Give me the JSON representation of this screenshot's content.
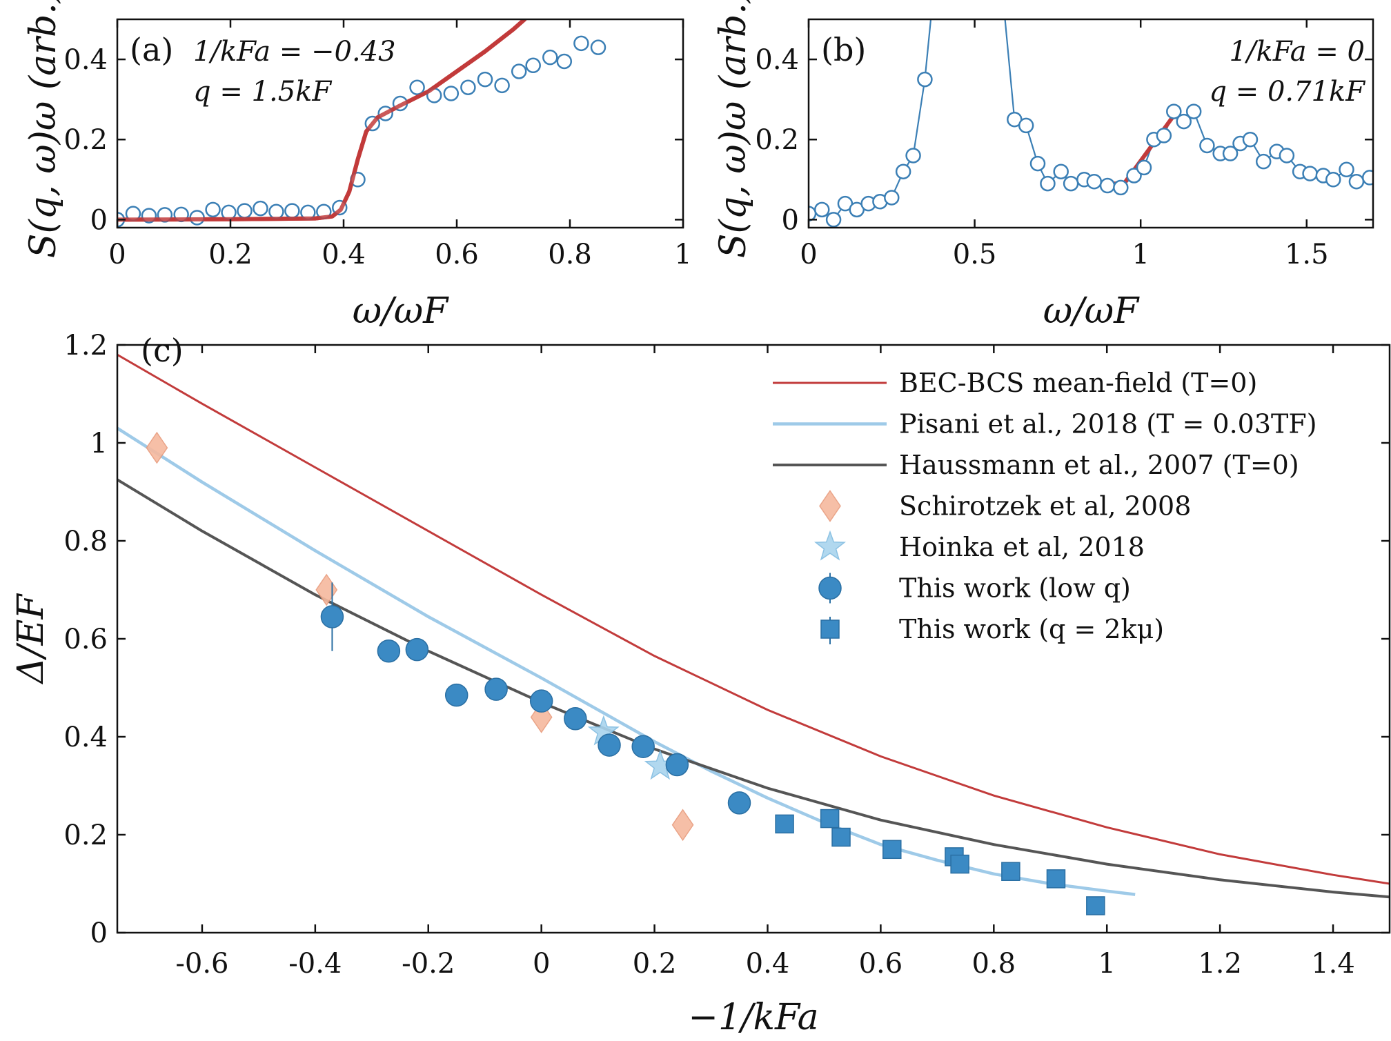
{
  "colors": {
    "mf": "#c23b3b",
    "pisani": "#9ecae8",
    "haussmann": "#555555",
    "schirotzek": "#f6b99e",
    "hoinka": "#a9d4ee",
    "thiswork": "#3b8ac4",
    "panel_points": "#3b7fb5",
    "panel_fit": "#c23b3b",
    "axis": "#111111"
  },
  "chart_data": [
    {
      "id": "a",
      "type": "scatter",
      "panel_label": "(a)",
      "annotations": [
        "1/kFa = −0.43",
        "q = 1.5kF"
      ],
      "xlabel": "ω/ωF",
      "ylabel": "S(q, ω)ω (arb.)",
      "xlim": [
        0,
        1
      ],
      "ylim": [
        -0.02,
        0.5
      ],
      "xticks": [
        0,
        0.2,
        0.4,
        0.6,
        0.8,
        1
      ],
      "xtick_labels": [
        "0",
        "0.2",
        "0.4",
        "0.6",
        "0.8",
        "1"
      ],
      "yticks": [
        0,
        0.2,
        0.4
      ],
      "ytick_labels": [
        "0",
        "0.2",
        "0.4"
      ],
      "grid": false,
      "series": [
        {
          "kind": "points",
          "x": [
            0.0,
            0.028,
            0.056,
            0.084,
            0.113,
            0.141,
            0.169,
            0.197,
            0.225,
            0.253,
            0.281,
            0.309,
            0.337,
            0.365,
            0.393,
            0.425,
            0.451,
            0.474,
            0.5,
            0.53,
            0.56,
            0.59,
            0.62,
            0.65,
            0.68,
            0.71,
            0.735,
            0.765,
            0.79,
            0.82,
            0.85
          ],
          "y": [
            0.0,
            0.015,
            0.01,
            0.012,
            0.013,
            0.005,
            0.025,
            0.018,
            0.022,
            0.028,
            0.02,
            0.022,
            0.018,
            0.02,
            0.03,
            0.1,
            0.24,
            0.265,
            0.29,
            0.33,
            0.31,
            0.315,
            0.33,
            0.35,
            0.335,
            0.37,
            0.385,
            0.405,
            0.395,
            0.44,
            0.43
          ]
        },
        {
          "kind": "fit",
          "x": [
            0.0,
            0.2,
            0.35,
            0.38,
            0.395,
            0.41,
            0.425,
            0.44,
            0.46,
            0.5,
            0.55,
            0.6,
            0.65,
            0.7,
            0.72
          ],
          "y": [
            0.0,
            0.001,
            0.003,
            0.008,
            0.025,
            0.07,
            0.15,
            0.22,
            0.255,
            0.285,
            0.32,
            0.37,
            0.42,
            0.475,
            0.5
          ]
        }
      ]
    },
    {
      "id": "b",
      "type": "line",
      "panel_label": "(b)",
      "annotations": [
        "1/kFa = 0",
        "q = 0.71kF"
      ],
      "xlabel": "ω/ωF",
      "ylabel": "S(q, ω)ω (arb.)",
      "xlim": [
        0,
        1.7
      ],
      "ylim": [
        -0.02,
        0.5
      ],
      "xticks": [
        0,
        0.5,
        1,
        1.5
      ],
      "xtick_labels": [
        "0",
        "0.5",
        "1",
        "1.5"
      ],
      "yticks": [
        0,
        0.2,
        0.4
      ],
      "ytick_labels": [
        "0",
        "0.2",
        "0.4"
      ],
      "grid": false,
      "series": [
        {
          "kind": "points_connected",
          "x": [
            0.0,
            0.04,
            0.075,
            0.11,
            0.145,
            0.18,
            0.215,
            0.25,
            0.285,
            0.315,
            0.35,
            0.38,
            0.58,
            0.62,
            0.655,
            0.69,
            0.72,
            0.76,
            0.79,
            0.83,
            0.86,
            0.9,
            0.94,
            0.98,
            1.01,
            1.04,
            1.07,
            1.1,
            1.13,
            1.16,
            1.2,
            1.24,
            1.27,
            1.3,
            1.33,
            1.37,
            1.41,
            1.44,
            1.48,
            1.51,
            1.55,
            1.58,
            1.62,
            1.65,
            1.69
          ],
          "y": [
            0.015,
            0.025,
            0.0,
            0.04,
            0.025,
            0.04,
            0.045,
            0.055,
            0.12,
            0.16,
            0.35,
            0.6,
            0.6,
            0.25,
            0.235,
            0.14,
            0.09,
            0.12,
            0.09,
            0.1,
            0.095,
            0.085,
            0.08,
            0.11,
            0.13,
            0.2,
            0.21,
            0.27,
            0.245,
            0.27,
            0.185,
            0.165,
            0.165,
            0.19,
            0.2,
            0.145,
            0.17,
            0.16,
            0.12,
            0.115,
            0.11,
            0.1,
            0.125,
            0.095,
            0.105
          ]
        },
        {
          "kind": "fit",
          "x": [
            0.83,
            0.95,
            1.1
          ],
          "y": [
            0.09,
            0.09,
            0.26
          ]
        }
      ]
    },
    {
      "id": "c",
      "type": "line",
      "panel_label": "(c)",
      "xlabel": "−1/kFa",
      "ylabel": "Δ/EF",
      "xlim": [
        -0.75,
        1.5
      ],
      "ylim": [
        0,
        1.2
      ],
      "xticks": [
        -0.6,
        -0.4,
        -0.2,
        0,
        0.2,
        0.4,
        0.6,
        0.8,
        1,
        1.2,
        1.4
      ],
      "xtick_labels": [
        "-0.6",
        "-0.4",
        "-0.2",
        "0",
        "0.2",
        "0.4",
        "0.6",
        "0.8",
        "1",
        "1.2",
        "1.4"
      ],
      "yticks": [
        0,
        0.2,
        0.4,
        0.6,
        0.8,
        1,
        1.2
      ],
      "ytick_labels": [
        "0",
        "0.2",
        "0.4",
        "0.6",
        "0.8",
        "1",
        "1.2"
      ],
      "grid": false,
      "legend_position": "top-right",
      "series": [
        {
          "name": "BEC-BCS mean-field (T=0)",
          "kind": "line",
          "color_key": "mf",
          "x": [
            -0.75,
            -0.6,
            -0.4,
            -0.2,
            0.0,
            0.2,
            0.4,
            0.6,
            0.8,
            1.0,
            1.2,
            1.4,
            1.5
          ],
          "y": [
            1.18,
            1.08,
            0.95,
            0.82,
            0.69,
            0.565,
            0.455,
            0.36,
            0.28,
            0.215,
            0.16,
            0.118,
            0.1
          ]
        },
        {
          "name": "Pisani et al., 2018 (T = 0.03TF)",
          "kind": "line",
          "color_key": "pisani",
          "x": [
            -0.75,
            -0.6,
            -0.4,
            -0.2,
            0.0,
            0.2,
            0.3,
            0.4,
            0.5,
            0.6,
            0.7,
            0.8,
            0.9,
            1.0,
            1.05
          ],
          "y": [
            1.03,
            0.92,
            0.78,
            0.645,
            0.52,
            0.39,
            0.33,
            0.275,
            0.225,
            0.18,
            0.148,
            0.12,
            0.1,
            0.085,
            0.078
          ]
        },
        {
          "name": "Haussmann et al., 2007 (T=0)",
          "kind": "line",
          "color_key": "haussmann",
          "x": [
            -0.75,
            -0.6,
            -0.4,
            -0.2,
            0.0,
            0.2,
            0.4,
            0.6,
            0.8,
            1.0,
            1.2,
            1.4,
            1.5
          ],
          "y": [
            0.925,
            0.82,
            0.69,
            0.575,
            0.47,
            0.375,
            0.295,
            0.23,
            0.18,
            0.14,
            0.108,
            0.083,
            0.073
          ]
        },
        {
          "name": "Schirotzek et al, 2008",
          "kind": "diamond",
          "color_key": "schirotzek",
          "x": [
            -0.68,
            -0.38,
            0.0,
            0.25
          ],
          "y": [
            0.99,
            0.7,
            0.44,
            0.22
          ]
        },
        {
          "name": "Hoinka et al, 2018",
          "kind": "star",
          "color_key": "hoinka",
          "x": [
            0.11,
            0.21
          ],
          "y": [
            0.41,
            0.34
          ]
        },
        {
          "name": "This work (low q)",
          "kind": "circle",
          "color_key": "thiswork",
          "x": [
            -0.37,
            -0.27,
            -0.22,
            -0.15,
            -0.08,
            0.0,
            0.06,
            0.12,
            0.18,
            0.24,
            0.35
          ],
          "y": [
            0.645,
            0.575,
            0.578,
            0.485,
            0.497,
            0.473,
            0.437,
            0.383,
            0.38,
            0.343,
            0.265
          ],
          "err": [
            0.07,
            0.0,
            0.0,
            0.0,
            0.0,
            0.0,
            0.0,
            0.0,
            0.0,
            0.0,
            0.0
          ]
        },
        {
          "name": "This work (q = 2kμ)",
          "kind": "square",
          "color_key": "thiswork",
          "x": [
            0.43,
            0.51,
            0.53,
            0.62,
            0.73,
            0.74,
            0.83,
            0.91,
            0.98
          ],
          "y": [
            0.222,
            0.233,
            0.195,
            0.17,
            0.155,
            0.14,
            0.125,
            0.11,
            0.055
          ]
        }
      ]
    }
  ]
}
